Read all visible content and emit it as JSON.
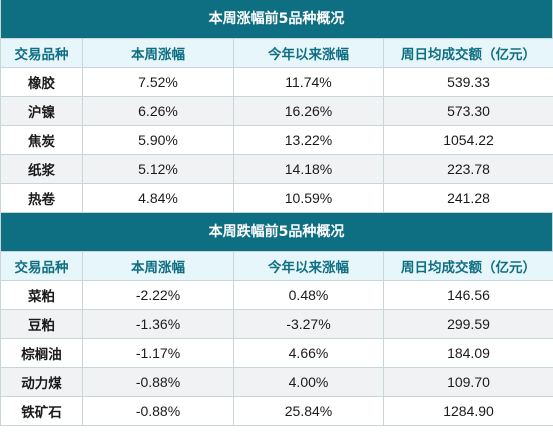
{
  "sections": [
    {
      "title": "本周涨幅前5品种概况",
      "headers": [
        "交易品种",
        "本周涨幅",
        "今年以来涨幅",
        "周日均成交额（亿元）"
      ],
      "rows": [
        [
          "橡胶",
          "7.52%",
          "11.74%",
          "539.33"
        ],
        [
          "沪镍",
          "6.26%",
          "16.26%",
          "573.30"
        ],
        [
          "焦炭",
          "5.90%",
          "13.22%",
          "1054.22"
        ],
        [
          "纸浆",
          "5.12%",
          "14.18%",
          "223.78"
        ],
        [
          "热卷",
          "4.84%",
          "10.59%",
          "241.28"
        ]
      ]
    },
    {
      "title": "本周跌幅前5品种概况",
      "headers": [
        "交易品种",
        "本周涨幅",
        "今年以来涨幅",
        "周日均成交额（亿元）"
      ],
      "rows": [
        [
          "菜粕",
          "-2.22%",
          "0.48%",
          "146.56"
        ],
        [
          "豆粕",
          "-1.36%",
          "-3.27%",
          "299.59"
        ],
        [
          "棕榈油",
          "-1.17%",
          "4.66%",
          "184.09"
        ],
        [
          "动力煤",
          "-0.88%",
          "4.00%",
          "109.70"
        ],
        [
          "铁矿石",
          "-0.88%",
          "25.84%",
          "1284.90"
        ]
      ]
    }
  ],
  "colors": {
    "title_bg": "#0f6f82",
    "header_bg": "#e7f6fa",
    "header_text": "#0f6f82",
    "alt_row_bg": "#f1f2f4",
    "border": "#c8d6da"
  }
}
